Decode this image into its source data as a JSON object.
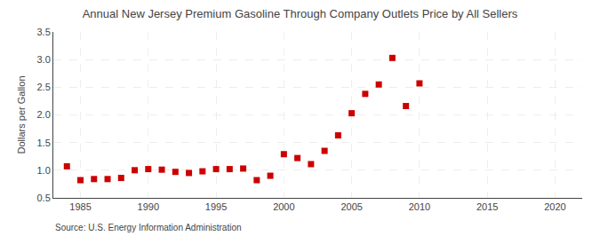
{
  "chart_data": {
    "type": "scatter",
    "title": "Annual New Jersey Premium Gasoline Through Company Outlets Price by All Sellers",
    "ylabel": "Dollars per Gallon",
    "annotations": [
      "Source: U.S. Energy Information Administration"
    ],
    "x": [
      1984,
      1985,
      1986,
      1987,
      1988,
      1989,
      1990,
      1991,
      1992,
      1993,
      1994,
      1995,
      1996,
      1997,
      1998,
      1999,
      2000,
      2001,
      2002,
      2003,
      2004,
      2005,
      2006,
      2007,
      2008,
      2009,
      2010
    ],
    "values": [
      1.07,
      0.82,
      0.84,
      0.84,
      0.86,
      1.0,
      1.02,
      1.01,
      0.97,
      0.95,
      0.98,
      1.02,
      1.02,
      1.03,
      0.82,
      0.9,
      1.29,
      1.22,
      1.11,
      1.35,
      1.63,
      2.03,
      2.38,
      2.55,
      3.03,
      2.16,
      2.57
    ],
    "color": "#cc0000",
    "marker": "square",
    "grid": true,
    "xlim": [
      1983,
      2022
    ],
    "xticks": [
      1985,
      1990,
      1995,
      2000,
      2005,
      2010,
      2015,
      2020
    ],
    "ylim": [
      0.5,
      3.5
    ],
    "yticks": [
      0.5,
      {
        "value": 1.0,
        "label": "1.0"
      },
      1.5,
      {
        "value": 2.0,
        "label": "2.0"
      },
      2.5,
      {
        "value": 3.0,
        "label": "3.0"
      },
      3.5
    ]
  }
}
